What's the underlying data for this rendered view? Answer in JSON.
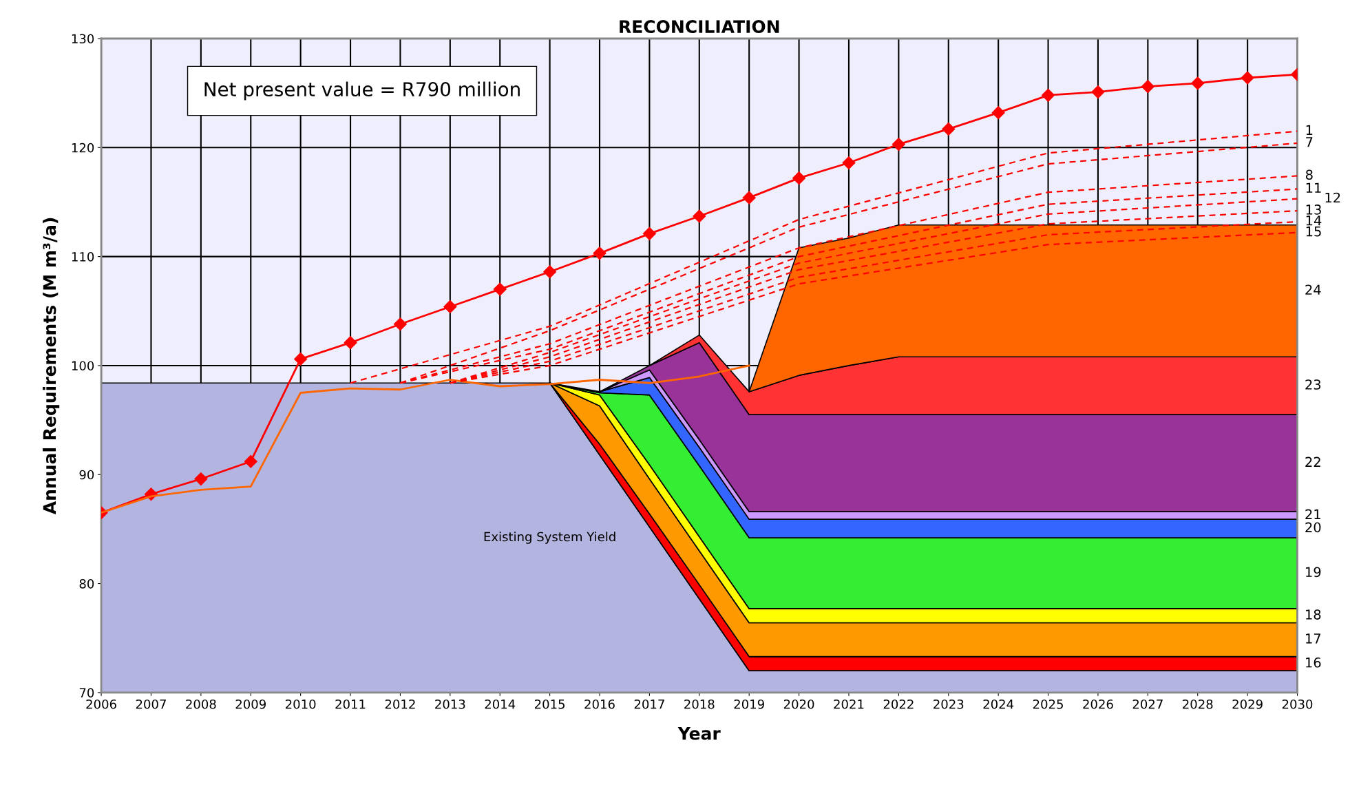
{
  "chart_data": {
    "type": "area",
    "title": "RECONCILIATION",
    "xlabel": "Year",
    "ylabel": "Annual Requirements (M m³/a)",
    "annotations": [
      "Net present value = R790 million"
    ],
    "grid": true,
    "legend": false,
    "xlim": [
      2006,
      2030
    ],
    "xticks": [
      2006,
      2007,
      2008,
      2009,
      2010,
      2011,
      2012,
      2013,
      2014,
      2015,
      2016,
      2017,
      2018,
      2019,
      2020,
      2021,
      2022,
      2023,
      2024,
      2025,
      2026,
      2027,
      2028,
      2029,
      2030
    ],
    "ylim": [
      70,
      130
    ],
    "yticks": [
      70,
      80,
      90,
      100,
      110,
      120,
      130
    ],
    "x": [
      2006,
      2007,
      2008,
      2009,
      2010,
      2011,
      2012,
      2013,
      2014,
      2015,
      2016,
      2017,
      2018,
      2019,
      2020,
      2021,
      2022,
      2023,
      2024,
      2025,
      2026,
      2027,
      2028,
      2029,
      2030
    ],
    "series": [
      {
        "name": "Existing System Yield",
        "color": "#b4b4e0",
        "values": [
          98.4,
          98.4,
          98.4,
          98.4,
          98.4,
          98.4,
          98.4,
          98.4,
          98.4,
          98.4,
          91.8,
          85.2,
          78.6,
          72.0,
          72.0,
          72.0,
          72.0,
          72.0,
          72.0,
          72.0,
          72.0,
          72.0,
          72.0,
          72.0,
          72.0
        ]
      },
      {
        "name": "16",
        "color": "#ff0000",
        "values": [
          null,
          null,
          null,
          null,
          null,
          null,
          null,
          null,
          null,
          98.4,
          92.8,
          86.4,
          79.9,
          73.3,
          73.3,
          73.3,
          73.3,
          73.3,
          73.3,
          73.3,
          73.3,
          73.3,
          73.3,
          73.3,
          73.3
        ]
      },
      {
        "name": "17",
        "color": "#ff9900",
        "values": [
          null,
          null,
          null,
          null,
          null,
          null,
          null,
          null,
          null,
          98.4,
          96.3,
          89.6,
          83.0,
          76.4,
          76.4,
          76.4,
          76.4,
          76.4,
          76.4,
          76.4,
          76.4,
          76.4,
          76.4,
          76.4,
          76.4
        ]
      },
      {
        "name": "18",
        "color": "#ffff00",
        "values": [
          null,
          null,
          null,
          null,
          null,
          null,
          null,
          null,
          null,
          98.4,
          97.3,
          90.9,
          84.3,
          77.7,
          77.7,
          77.7,
          77.7,
          77.7,
          77.7,
          77.7,
          77.7,
          77.7,
          77.7,
          77.7,
          77.7
        ]
      },
      {
        "name": "19",
        "color": "#33ee33",
        "values": [
          null,
          null,
          null,
          null,
          null,
          null,
          null,
          null,
          null,
          98.4,
          97.5,
          97.3,
          90.8,
          84.2,
          84.2,
          84.2,
          84.2,
          84.2,
          84.2,
          84.2,
          84.2,
          84.2,
          84.2,
          84.2,
          84.2
        ]
      },
      {
        "name": "20",
        "color": "#3366ff",
        "values": [
          null,
          null,
          null,
          null,
          null,
          null,
          null,
          null,
          null,
          98.4,
          97.6,
          98.9,
          92.5,
          85.9,
          85.9,
          85.9,
          85.9,
          85.9,
          85.9,
          85.9,
          85.9,
          85.9,
          85.9,
          85.9,
          85.9
        ]
      },
      {
        "name": "21",
        "color": "#cc99ff",
        "values": [
          null,
          null,
          null,
          null,
          null,
          null,
          null,
          null,
          null,
          null,
          97.6,
          99.6,
          93.2,
          86.6,
          86.6,
          86.6,
          86.6,
          86.6,
          86.6,
          86.6,
          86.6,
          86.6,
          86.6,
          86.6,
          86.6
        ]
      },
      {
        "name": "22",
        "color": "#993399",
        "values": [
          null,
          null,
          null,
          null,
          null,
          null,
          null,
          null,
          null,
          null,
          97.6,
          100.0,
          102.1,
          95.5,
          95.5,
          95.5,
          95.5,
          95.5,
          95.5,
          95.5,
          95.5,
          95.5,
          95.5,
          95.5,
          95.5
        ]
      },
      {
        "name": "23",
        "color": "#ff3333",
        "values": [
          null,
          null,
          null,
          null,
          null,
          null,
          null,
          null,
          null,
          null,
          null,
          100.0,
          102.8,
          97.6,
          99.1,
          100.0,
          100.8,
          100.8,
          100.8,
          100.8,
          100.8,
          100.8,
          100.8,
          100.8,
          100.8
        ]
      },
      {
        "name": "24",
        "color": "#ff6600",
        "values": [
          null,
          null,
          null,
          null,
          null,
          null,
          null,
          null,
          null,
          null,
          null,
          null,
          null,
          97.6,
          110.8,
          111.7,
          112.9,
          112.9,
          112.9,
          112.9,
          112.9,
          112.9,
          112.9,
          112.9,
          112.9
        ]
      },
      {
        "type": "line",
        "color": "#ff6600",
        "marker": "none",
        "line_style": "solid",
        "x": [
          2006,
          2007,
          2008,
          2009,
          2010,
          2011,
          2012,
          2013,
          2014,
          2015,
          2016,
          2017,
          2018,
          2019
        ],
        "values": [
          86.5,
          88.0,
          88.6,
          88.9,
          97.5,
          97.9,
          97.8,
          98.7,
          98.1,
          98.3,
          98.7,
          98.4,
          99.0,
          100.0
        ]
      },
      {
        "type": "line",
        "color": "#ff0000",
        "marker": "diamond",
        "line_style": "solid",
        "values": [
          86.5,
          88.2,
          89.6,
          91.2,
          100.6,
          102.1,
          103.8,
          105.4,
          107.0,
          108.6,
          110.3,
          112.1,
          113.7,
          115.4,
          117.2,
          118.6,
          120.3,
          121.7,
          123.2,
          124.8,
          125.1,
          125.6,
          125.9,
          126.4,
          126.7
        ]
      },
      {
        "name": "1",
        "type": "line",
        "color": "#ff0000",
        "marker": "none",
        "line_style": "dashed",
        "x": [
          2011,
          2015,
          2020,
          2025,
          2030
        ],
        "values": [
          98.4,
          103.6,
          113.4,
          119.5,
          121.5
        ]
      },
      {
        "name": "7",
        "type": "line",
        "color": "#ff0000",
        "marker": "none",
        "line_style": "dashed",
        "x": [
          2012,
          2015,
          2020,
          2025,
          2030
        ],
        "values": [
          98.4,
          103.2,
          112.7,
          118.5,
          120.4
        ]
      },
      {
        "name": "8",
        "type": "line",
        "color": "#ff0000",
        "marker": "none",
        "line_style": "dashed",
        "x": [
          2012,
          2015,
          2020,
          2025,
          2030
        ],
        "values": [
          98.4,
          102.0,
          110.8,
          115.9,
          117.4
        ]
      },
      {
        "name": "11",
        "type": "line",
        "color": "#ff0000",
        "marker": "none",
        "line_style": "dashed",
        "x": [
          2012,
          2015,
          2020,
          2025,
          2030
        ],
        "values": [
          98.4,
          101.5,
          110.0,
          114.8,
          116.2
        ]
      },
      {
        "name": "12",
        "type": "line",
        "color": "#ff0000",
        "marker": "none",
        "line_style": "dashed",
        "x": [
          2013,
          2015,
          2020,
          2025,
          2030
        ],
        "values": [
          98.4,
          101.2,
          109.4,
          113.9,
          115.3
        ]
      },
      {
        "name": "13",
        "type": "line",
        "color": "#ff0000",
        "marker": "none",
        "line_style": "dashed",
        "x": [
          2013,
          2015,
          2020,
          2025,
          2030
        ],
        "values": [
          98.4,
          100.8,
          108.8,
          113.0,
          114.2
        ]
      },
      {
        "name": "14",
        "type": "line",
        "color": "#ff0000",
        "marker": "none",
        "line_style": "dashed",
        "x": [
          2013,
          2015,
          2020,
          2025,
          2030
        ],
        "values": [
          98.4,
          100.4,
          108.1,
          112.0,
          113.2
        ]
      },
      {
        "name": "15",
        "type": "line",
        "color": "#ff0000",
        "marker": "none",
        "line_style": "dashed",
        "x": [
          2013,
          2015,
          2020,
          2025,
          2030
        ],
        "values": [
          98.4,
          100.0,
          107.5,
          111.1,
          112.2
        ]
      }
    ]
  }
}
